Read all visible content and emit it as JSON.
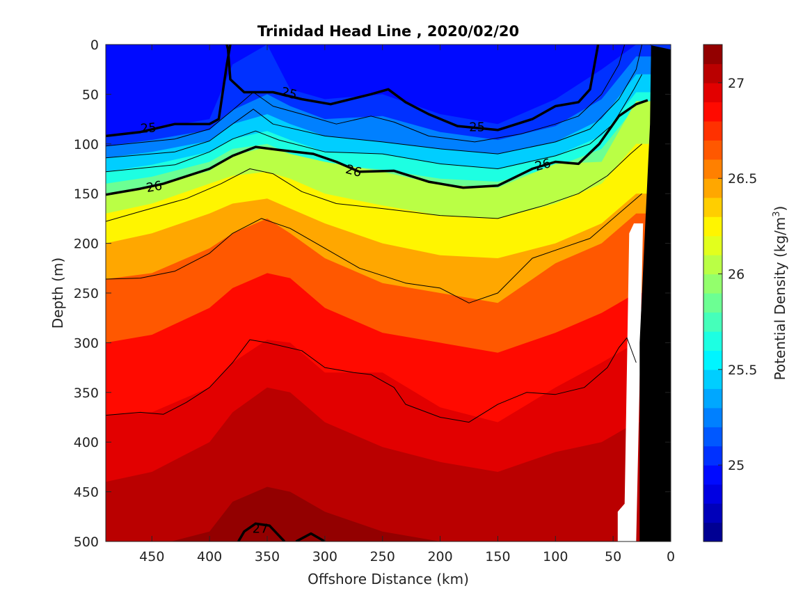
{
  "chart_data": {
    "type": "heatmap",
    "title": "Trinidad Head Line , 2020/02/20",
    "xlabel": "Offshore Distance (km)",
    "ylabel": "Depth (m)",
    "xlim": [
      490,
      0
    ],
    "ylim": [
      0,
      500
    ],
    "x_ticks": [
      450,
      400,
      350,
      300,
      250,
      200,
      150,
      100,
      50,
      0
    ],
    "y_ticks": [
      0,
      50,
      100,
      150,
      200,
      250,
      300,
      350,
      400,
      450,
      500
    ],
    "x_tick_labels": [
      "450",
      "400",
      "350",
      "300",
      "250",
      "200",
      "150",
      "100",
      "50",
      "0"
    ],
    "y_tick_labels": [
      "0",
      "50",
      "100",
      "150",
      "200",
      "250",
      "300",
      "350",
      "400",
      "450",
      "500"
    ],
    "colorbar": {
      "label": "Potential Density (kg/m",
      "label_sup": "3",
      "label_close": ")",
      "min": 24.6,
      "max": 27.2,
      "ticks": [
        25,
        25.5,
        26,
        26.5,
        27
      ],
      "tick_labels": [
        "25",
        "25.5",
        "26",
        "26.5",
        "27"
      ],
      "levels": 26,
      "colormap": "jet"
    },
    "profiles_x": [
      490,
      450,
      400,
      380,
      350,
      330,
      300,
      250,
      200,
      150,
      100,
      60,
      30
    ],
    "isopycnal_depths": [
      {
        "sigma": 24.9,
        "depths": [
          0,
          0,
          0,
          0,
          0,
          0,
          0,
          0,
          0,
          0,
          0,
          0,
          0
        ]
      },
      {
        "sigma": 25.0,
        "depths": [
          92,
          85,
          75,
          20,
          0,
          45,
          55,
          50,
          70,
          80,
          55,
          25,
          0
        ]
      },
      {
        "sigma": 25.2,
        "depths": [
          102,
          96,
          86,
          66,
          50,
          62,
          75,
          72,
          88,
          96,
          82,
          55,
          12
        ]
      },
      {
        "sigma": 25.4,
        "depths": [
          114,
          108,
          97,
          80,
          70,
          80,
          92,
          98,
          105,
          110,
          98,
          75,
          30
        ]
      },
      {
        "sigma": 25.6,
        "depths": [
          128,
          121,
          108,
          95,
          87,
          96,
          108,
          110,
          120,
          125,
          112,
          92,
          48
        ]
      },
      {
        "sigma": 25.8,
        "depths": [
          140,
          133,
          118,
          105,
          100,
          110,
          120,
          126,
          135,
          138,
          123,
          105,
          62
        ]
      },
      {
        "sigma": 26.0,
        "depths": [
          151,
          143,
          127,
          112,
          103,
          110,
          118,
          128,
          141,
          144,
          120,
          118,
          57
        ]
      },
      {
        "sigma": 26.2,
        "depths": [
          170,
          160,
          140,
          132,
          128,
          135,
          150,
          162,
          172,
          175,
          160,
          140,
          100
        ]
      },
      {
        "sigma": 26.4,
        "depths": [
          200,
          190,
          170,
          160,
          155,
          165,
          180,
          200,
          212,
          215,
          200,
          180,
          150
        ]
      },
      {
        "sigma": 26.6,
        "depths": [
          236,
          230,
          205,
          190,
          175,
          190,
          215,
          240,
          250,
          260,
          220,
          200,
          170
        ]
      },
      {
        "sigma": 26.8,
        "depths": [
          300,
          292,
          265,
          245,
          230,
          235,
          265,
          290,
          300,
          310,
          290,
          270,
          250
        ]
      },
      {
        "sigma": 26.9,
        "depths": [
          373,
          370,
          345,
          320,
          297,
          300,
          330,
          330,
          365,
          380,
          345,
          320,
          300
        ]
      },
      {
        "sigma": 27.0,
        "depths": [
          440,
          430,
          400,
          370,
          345,
          350,
          380,
          405,
          420,
          430,
          410,
          400,
          380
        ]
      },
      {
        "sigma": 27.1,
        "depths": [
          505,
          505,
          490,
          460,
          445,
          450,
          470,
          490,
          500,
          505,
          505,
          505,
          505
        ]
      }
    ],
    "contours": [
      {
        "label": "25",
        "bold": true,
        "points": [
          [
            490,
            92
          ],
          [
            460,
            88
          ],
          [
            430,
            80
          ],
          [
            400,
            80
          ],
          [
            392,
            75
          ],
          [
            385,
            20
          ],
          [
            382,
            0
          ]
        ]
      },
      {
        "label": "25",
        "bold": true,
        "points": [
          [
            385,
            0
          ],
          [
            384,
            5
          ],
          [
            382,
            35
          ],
          [
            370,
            48
          ],
          [
            345,
            48
          ],
          [
            320,
            55
          ],
          [
            295,
            60
          ],
          [
            260,
            50
          ],
          [
            245,
            45
          ],
          [
            230,
            58
          ],
          [
            210,
            70
          ],
          [
            185,
            82
          ],
          [
            150,
            86
          ],
          [
            120,
            75
          ],
          [
            100,
            62
          ],
          [
            80,
            58
          ],
          [
            70,
            45
          ],
          [
            63,
            0
          ]
        ]
      },
      {
        "label": "",
        "bold": false,
        "points": [
          [
            490,
            102
          ],
          [
            430,
            95
          ],
          [
            400,
            85
          ],
          [
            380,
            66
          ],
          [
            362,
            48
          ],
          [
            345,
            62
          ],
          [
            320,
            70
          ],
          [
            290,
            80
          ],
          [
            260,
            72
          ],
          [
            240,
            78
          ],
          [
            210,
            92
          ],
          [
            170,
            98
          ],
          [
            130,
            90
          ],
          [
            100,
            80
          ],
          [
            80,
            72
          ],
          [
            60,
            50
          ],
          [
            45,
            20
          ],
          [
            40,
            0
          ]
        ]
      },
      {
        "label": "",
        "bold": false,
        "points": [
          [
            490,
            114
          ],
          [
            430,
            108
          ],
          [
            400,
            97
          ],
          [
            380,
            80
          ],
          [
            362,
            65
          ],
          [
            345,
            80
          ],
          [
            300,
            92
          ],
          [
            250,
            98
          ],
          [
            200,
            105
          ],
          [
            150,
            110
          ],
          [
            100,
            98
          ],
          [
            70,
            85
          ],
          [
            45,
            55
          ],
          [
            30,
            25
          ],
          [
            25,
            0
          ]
        ]
      },
      {
        "label": "",
        "bold": false,
        "points": [
          [
            490,
            128
          ],
          [
            430,
            121
          ],
          [
            400,
            108
          ],
          [
            380,
            95
          ],
          [
            360,
            87
          ],
          [
            340,
            96
          ],
          [
            300,
            108
          ],
          [
            250,
            110
          ],
          [
            200,
            120
          ],
          [
            150,
            125
          ],
          [
            100,
            112
          ],
          [
            70,
            100
          ],
          [
            50,
            80
          ],
          [
            32,
            45
          ],
          [
            25,
            30
          ]
        ]
      },
      {
        "label": "26",
        "bold": true,
        "points": [
          [
            490,
            151
          ],
          [
            460,
            145
          ],
          [
            440,
            140
          ],
          [
            400,
            125
          ],
          [
            380,
            112
          ],
          [
            360,
            103
          ],
          [
            340,
            106
          ],
          [
            310,
            110
          ],
          [
            290,
            118
          ],
          [
            270,
            128
          ],
          [
            240,
            127
          ],
          [
            210,
            138
          ],
          [
            180,
            144
          ],
          [
            150,
            142
          ],
          [
            120,
            125
          ],
          [
            100,
            118
          ],
          [
            80,
            120
          ],
          [
            62,
            100
          ],
          [
            45,
            72
          ],
          [
            30,
            60
          ],
          [
            20,
            56
          ]
        ]
      },
      {
        "label": "",
        "bold": false,
        "points": [
          [
            490,
            178
          ],
          [
            460,
            168
          ],
          [
            420,
            155
          ],
          [
            390,
            140
          ],
          [
            365,
            125
          ],
          [
            345,
            130
          ],
          [
            320,
            148
          ],
          [
            290,
            160
          ],
          [
            250,
            165
          ],
          [
            200,
            172
          ],
          [
            150,
            175
          ],
          [
            110,
            162
          ],
          [
            80,
            150
          ],
          [
            55,
            132
          ],
          [
            35,
            110
          ],
          [
            25,
            100
          ]
        ]
      },
      {
        "label": "",
        "bold": false,
        "points": [
          [
            490,
            236
          ],
          [
            460,
            235
          ],
          [
            430,
            228
          ],
          [
            400,
            210
          ],
          [
            380,
            190
          ],
          [
            355,
            175
          ],
          [
            330,
            185
          ],
          [
            300,
            205
          ],
          [
            270,
            225
          ],
          [
            230,
            240
          ],
          [
            200,
            245
          ],
          [
            175,
            260
          ],
          [
            150,
            250
          ],
          [
            120,
            215
          ],
          [
            95,
            205
          ],
          [
            70,
            195
          ],
          [
            40,
            165
          ],
          [
            25,
            150
          ]
        ]
      },
      {
        "label": "",
        "bold": false,
        "points": [
          [
            490,
            373
          ],
          [
            460,
            370
          ],
          [
            440,
            372
          ],
          [
            420,
            360
          ],
          [
            400,
            345
          ],
          [
            380,
            320
          ],
          [
            365,
            297
          ],
          [
            350,
            300
          ],
          [
            320,
            308
          ],
          [
            300,
            325
          ],
          [
            275,
            330
          ],
          [
            260,
            332
          ],
          [
            240,
            345
          ],
          [
            230,
            362
          ],
          [
            200,
            375
          ],
          [
            175,
            380
          ],
          [
            150,
            362
          ],
          [
            125,
            350
          ],
          [
            100,
            352
          ],
          [
            75,
            345
          ],
          [
            55,
            325
          ],
          [
            45,
            305
          ],
          [
            38,
            295
          ],
          [
            30,
            320
          ]
        ]
      },
      {
        "label": "27",
        "bold": true,
        "points": [
          [
            375,
            500
          ],
          [
            370,
            490
          ],
          [
            360,
            482
          ],
          [
            348,
            484
          ],
          [
            335,
            500
          ]
        ]
      },
      {
        "label": "",
        "bold": true,
        "points": [
          [
            325,
            500
          ],
          [
            312,
            492
          ],
          [
            300,
            500
          ]
        ]
      }
    ],
    "contour_labels": [
      {
        "text": "25",
        "x": 453,
        "y": 84,
        "angle": -5
      },
      {
        "text": "25",
        "x": 331,
        "y": 49,
        "angle": 15
      },
      {
        "text": "25",
        "x": 168,
        "y": 83,
        "angle": 0
      },
      {
        "text": "26",
        "x": 448,
        "y": 143,
        "angle": -10
      },
      {
        "text": "26",
        "x": 275,
        "y": 127,
        "angle": 15
      },
      {
        "text": "26",
        "x": 111,
        "y": 121,
        "angle": -15
      },
      {
        "text": "27",
        "x": 356,
        "y": 487,
        "angle": 0
      }
    ],
    "bathymetry_black": [
      [
        20,
        0
      ],
      [
        0,
        5
      ],
      [
        0,
        500
      ],
      [
        27,
        500
      ],
      [
        27,
        300
      ],
      [
        18,
        80
      ],
      [
        17,
        0
      ]
    ],
    "bathymetry_white_notch": [
      [
        30,
        500
      ],
      [
        46,
        500
      ],
      [
        46,
        470
      ],
      [
        40,
        462
      ],
      [
        36,
        190
      ],
      [
        32,
        180
      ],
      [
        24,
        180
      ]
    ],
    "colors": {
      "bathymetry": "#000000",
      "background": "#ffffff"
    }
  }
}
